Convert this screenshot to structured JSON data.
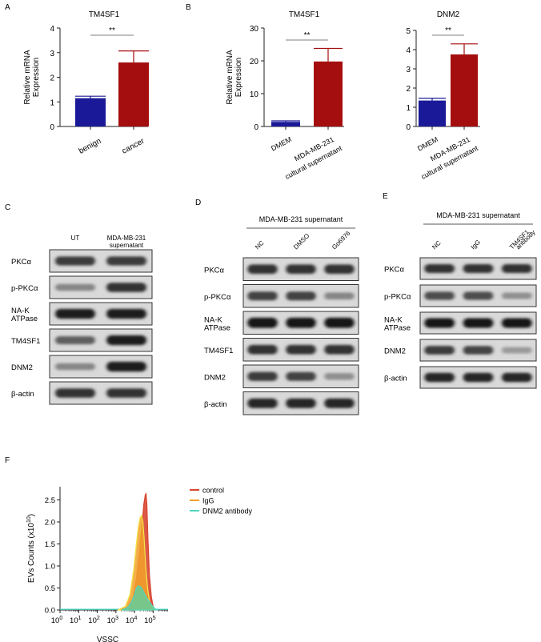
{
  "panels": {
    "A": "A",
    "B": "B",
    "C": "C",
    "D": "D",
    "E": "E",
    "F": "F"
  },
  "colors": {
    "benign": "#1a1a99",
    "cancer": "#a50e0e",
    "dmem": "#1a1a99",
    "mda": "#a50e0e",
    "control": "#d9452c",
    "igg": "#f2a22a",
    "dnm2ab": "#4fd6c2"
  },
  "chart_data": [
    {
      "id": "A",
      "type": "bar",
      "title": "TM4SF1",
      "categories": [
        "benign",
        "cancer"
      ],
      "values": [
        1.15,
        2.6
      ],
      "errors": [
        0.08,
        0.47
      ],
      "ylabel": "Relative mRNA Expression",
      "ylabel_lines": [
        "Relative mRNA",
        "Expression"
      ],
      "ylim": [
        0,
        4
      ],
      "yticks": [
        "0",
        "1",
        "2",
        "3",
        "4"
      ],
      "significance": "**"
    },
    {
      "id": "B1",
      "type": "bar",
      "title": "TM4SF1",
      "categories": [
        "DMEM",
        "MDA-MB-231 cultural supernatant"
      ],
      "cat_lines": [
        [
          "DMEM"
        ],
        [
          "MDA-MB-231",
          "cultural supernatant"
        ]
      ],
      "values": [
        1.4,
        19.8
      ],
      "errors": [
        0.3,
        4.0
      ],
      "ylabel": "Relative mRNA Expression",
      "ylabel_lines": [
        "Relative mRNA",
        "Expression"
      ],
      "ylim": [
        0,
        30
      ],
      "yticks": [
        "0",
        "10",
        "20",
        "30"
      ],
      "significance": "**"
    },
    {
      "id": "B2",
      "type": "bar",
      "title": "DNM2",
      "categories": [
        "DMEM",
        "MDA-MB-231 cultural supernatant"
      ],
      "cat_lines": [
        [
          "DMEM"
        ],
        [
          "MDA-MB-231",
          "cultural supernatant"
        ]
      ],
      "values": [
        1.35,
        3.75
      ],
      "errors": [
        0.12,
        0.55
      ],
      "ylim": [
        0,
        5
      ],
      "yticks": [
        "0",
        "1",
        "2",
        "3",
        "4",
        "5"
      ],
      "significance": "**"
    },
    {
      "id": "F",
      "type": "area",
      "ylabel": "EVs Counts (x10¹⁰)",
      "ylabel_parts": [
        "EVs Counts (x10",
        "10",
        ")"
      ],
      "xlabel": "VSSC",
      "ylim": [
        0,
        2.8
      ],
      "yticks": [
        "0.0",
        "0.5",
        "1.0",
        "1.5",
        "2.0",
        "2.5"
      ],
      "xticks": [
        {
          "base": "10",
          "exp": "0"
        },
        {
          "base": "10",
          "exp": "1"
        },
        {
          "base": "10",
          "exp": "2"
        },
        {
          "base": "10",
          "exp": "3"
        },
        {
          "base": "10",
          "exp": "4"
        },
        {
          "base": "10",
          "exp": "5"
        }
      ],
      "xrange_log": [
        0,
        5.8
      ],
      "legend": [
        "control",
        "IgG",
        "DNM2 antibody"
      ],
      "series": [
        {
          "name": "control",
          "x": [
            3.2,
            3.6,
            3.9,
            4.1,
            4.25,
            4.4,
            4.5,
            4.58,
            4.62,
            4.66,
            4.72,
            4.8,
            4.9,
            5.0,
            5.1
          ],
          "y": [
            0.0,
            0.05,
            0.25,
            0.7,
            1.3,
            1.9,
            2.4,
            2.62,
            2.64,
            2.4,
            1.6,
            0.8,
            0.3,
            0.08,
            0.0
          ]
        },
        {
          "name": "IgG",
          "x": [
            3.1,
            3.5,
            3.75,
            3.95,
            4.1,
            4.2,
            4.3,
            4.38,
            4.45,
            4.52,
            4.6,
            4.7,
            4.8,
            4.95,
            5.1
          ],
          "y": [
            0.0,
            0.08,
            0.35,
            0.9,
            1.5,
            1.9,
            2.1,
            2.15,
            2.0,
            1.6,
            1.0,
            0.5,
            0.2,
            0.05,
            0.0
          ]
        },
        {
          "name": "DNM2 antibody",
          "x": [
            3.3,
            3.6,
            3.8,
            4.0,
            4.1,
            4.2,
            4.35,
            4.5,
            4.65,
            4.8,
            4.95,
            5.1,
            5.25
          ],
          "y": [
            0.0,
            0.05,
            0.15,
            0.35,
            0.5,
            0.55,
            0.52,
            0.4,
            0.28,
            0.18,
            0.1,
            0.03,
            0.0
          ]
        }
      ]
    }
  ],
  "blots": {
    "C": {
      "columns": [
        "UT",
        "MDA-MB-231 supernatant"
      ],
      "column_lines": [
        [
          "UT"
        ],
        [
          "MDA-MB-231",
          "supernatant"
        ]
      ],
      "rows": [
        {
          "label": "PKCα"
        },
        {
          "label": "p-PKCα"
        },
        {
          "label": "NA-K ATPase",
          "lines": [
            "NA-K",
            "ATPase"
          ]
        },
        {
          "label": "TM4SF1"
        },
        {
          "label": "DNM2"
        },
        {
          "label": "β-actin"
        }
      ],
      "intensity": [
        [
          0.75,
          0.75
        ],
        [
          0.35,
          0.8
        ],
        [
          0.9,
          0.9
        ],
        [
          0.55,
          0.9
        ],
        [
          0.35,
          0.9
        ],
        [
          0.8,
          0.8
        ]
      ]
    },
    "D": {
      "header": "MDA-MB-231 supernatant",
      "columns": [
        "NC",
        "DMSO",
        "Go6976"
      ],
      "rows": [
        {
          "label": "PKCα"
        },
        {
          "label": "p-PKCα"
        },
        {
          "label": "NA-K ATPase",
          "lines": [
            "NA-K",
            "ATPase"
          ]
        },
        {
          "label": "TM4SF1"
        },
        {
          "label": "DNM2"
        },
        {
          "label": "β-actin"
        }
      ],
      "intensity": [
        [
          0.8,
          0.8,
          0.8
        ],
        [
          0.7,
          0.7,
          0.35
        ],
        [
          0.95,
          0.95,
          0.95
        ],
        [
          0.8,
          0.8,
          0.8
        ],
        [
          0.75,
          0.7,
          0.3
        ],
        [
          0.85,
          0.85,
          0.85
        ]
      ]
    },
    "E": {
      "header": "MDA-MB-231 supernatant",
      "columns": [
        "NC",
        "IgG",
        "TM4SF1 antibody"
      ],
      "column_lines": [
        [
          "NC"
        ],
        [
          "IgG"
        ],
        [
          "TM4SF1",
          "antibody"
        ]
      ],
      "rows": [
        {
          "label": "PKCα"
        },
        {
          "label": "p-PKCα"
        },
        {
          "label": "NA-K ATPase",
          "lines": [
            "NA-K",
            "ATPase"
          ]
        },
        {
          "label": "DNM2"
        },
        {
          "label": "β-actin"
        }
      ],
      "intensity": [
        [
          0.8,
          0.8,
          0.8
        ],
        [
          0.65,
          0.65,
          0.3
        ],
        [
          0.95,
          0.95,
          0.95
        ],
        [
          0.75,
          0.7,
          0.25
        ],
        [
          0.85,
          0.85,
          0.85
        ]
      ]
    }
  }
}
